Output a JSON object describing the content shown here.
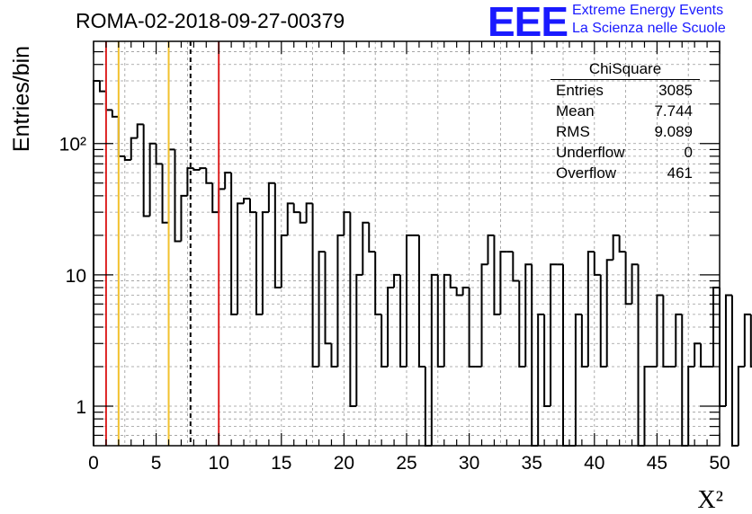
{
  "title": "ROMA-02-2018-09-27-00379",
  "logo": {
    "mark": "EEE",
    "line1": "Extreme Energy Events",
    "line2": "La Scienza nelle Scuole",
    "color": "#1a1aff"
  },
  "stats": {
    "name": "ChiSquare",
    "rows": [
      {
        "label": "Entries",
        "value": "3085"
      },
      {
        "label": "Mean",
        "value": "7.744"
      },
      {
        "label": "RMS",
        "value": "9.089"
      },
      {
        "label": "Underflow",
        "value": "0"
      },
      {
        "label": "Overflow",
        "value": "461"
      }
    ]
  },
  "chart_data": {
    "type": "bar",
    "histogram": true,
    "xlabel": "X²",
    "ylabel": "Entries/bin",
    "xlim": [
      0,
      50
    ],
    "ylim": [
      0.5,
      600
    ],
    "log_y": true,
    "grid": true,
    "bin_width": 0.5,
    "x_ticks": [
      "0",
      "5",
      "10",
      "15",
      "20",
      "25",
      "30",
      "35",
      "40",
      "45",
      "50"
    ],
    "y_ticks": [
      "1",
      "10",
      "10²"
    ],
    "values": [
      300,
      250,
      180,
      160,
      80,
      75,
      110,
      140,
      28,
      100,
      70,
      25,
      90,
      18,
      40,
      65,
      63,
      65,
      50,
      30,
      45,
      60,
      5,
      35,
      38,
      30,
      5,
      30,
      50,
      8,
      20,
      35,
      30,
      25,
      35,
      2,
      15,
      3,
      2,
      20,
      30,
      1,
      10,
      25,
      15,
      5,
      2,
      8,
      10,
      2,
      20,
      20,
      2,
      0,
      10,
      2,
      10,
      8,
      7,
      8,
      2,
      2,
      12,
      20,
      5,
      15,
      15,
      9,
      2,
      12,
      0,
      5,
      1,
      12,
      12,
      0,
      0,
      5,
      2,
      15,
      10,
      2,
      13,
      20,
      15,
      6,
      12,
      0,
      2,
      2,
      7,
      2,
      2,
      5,
      0,
      2,
      3,
      2,
      2,
      8,
      1,
      7,
      0,
      2,
      5,
      2,
      5,
      0,
      2,
      1,
      1,
      2,
      2,
      2,
      2,
      2,
      3,
      3,
      0,
      2,
      2,
      2,
      2,
      0,
      5,
      5,
      2,
      5,
      0,
      0,
      2,
      0,
      2,
      1,
      1,
      2,
      1,
      0,
      2,
      1,
      2,
      2,
      1,
      1,
      2,
      2,
      2,
      3,
      4,
      2,
      3,
      3,
      0,
      3,
      3,
      4,
      1,
      3,
      3,
      2,
      3,
      1,
      0,
      3,
      3,
      4,
      3,
      3,
      2,
      4,
      2,
      1,
      0,
      2,
      3,
      3,
      2,
      3,
      1,
      2,
      2,
      2,
      0,
      1,
      2,
      2,
      3,
      2,
      3,
      0,
      2,
      3,
      1,
      0,
      2,
      3
    ],
    "vertical_lines": [
      {
        "x": 1,
        "color": "#dd2222",
        "style": "solid"
      },
      {
        "x": 2,
        "color": "#f2c12e",
        "style": "solid"
      },
      {
        "x": 6,
        "color": "#f2c12e",
        "style": "solid"
      },
      {
        "x": 7.744,
        "color": "#000000",
        "style": "dashed"
      },
      {
        "x": 10,
        "color": "#dd2222",
        "style": "solid"
      }
    ]
  }
}
